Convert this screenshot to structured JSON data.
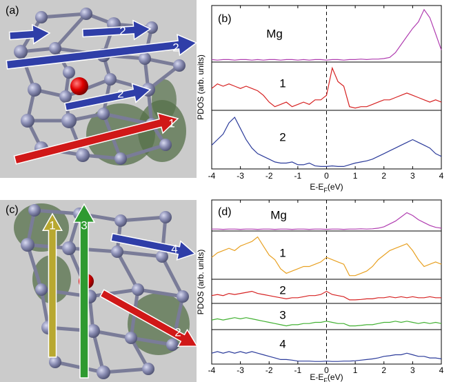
{
  "structures": [
    {
      "label": "(a)",
      "arrow_labels": [
        "2",
        "2",
        "2",
        "1"
      ]
    },
    {
      "label": "(c)",
      "arrow_labels": [
        "1",
        "3",
        "4",
        "2"
      ]
    }
  ],
  "chart_data": [
    {
      "type": "line",
      "label": "(b)",
      "ylabel": "PDOS (arb. units)",
      "xlabel": [
        "E-E",
        "F",
        "(eV)"
      ],
      "vline": 0,
      "xlim": [
        -4,
        4
      ],
      "xticks": [
        -4,
        -3,
        -2,
        -1,
        0,
        1,
        2,
        3,
        4
      ],
      "ylim": [
        0,
        1
      ],
      "x": [
        -4,
        -3.8,
        -3.6,
        -3.4,
        -3.2,
        -3,
        -2.8,
        -2.6,
        -2.4,
        -2.2,
        -2,
        -1.8,
        -1.6,
        -1.4,
        -1.2,
        -1,
        -0.8,
        -0.6,
        -0.4,
        -0.2,
        0,
        0.2,
        0.4,
        0.6,
        0.8,
        1,
        1.2,
        1.4,
        1.6,
        1.8,
        2,
        2.2,
        2.4,
        2.6,
        2.8,
        3,
        3.2,
        3.4,
        3.6,
        3.8,
        4
      ],
      "series": [
        {
          "name": "Mg",
          "color": "#b03cb0",
          "values": [
            0.02,
            0.01,
            0.02,
            0.02,
            0.01,
            0.02,
            0.02,
            0.01,
            0.02,
            0.01,
            0.02,
            0.02,
            0.01,
            0.02,
            0.02,
            0.01,
            0.02,
            0.01,
            0.02,
            0.02,
            0.01,
            0.02,
            0.02,
            0.01,
            0.02,
            0.02,
            0.03,
            0.02,
            0.03,
            0.03,
            0.04,
            0.06,
            0.15,
            0.3,
            0.45,
            0.6,
            0.72,
            0.95,
            0.8,
            0.5,
            0.2
          ]
        },
        {
          "name": "1",
          "color": "#d62020",
          "values": [
            0.45,
            0.55,
            0.5,
            0.55,
            0.5,
            0.45,
            0.5,
            0.45,
            0.4,
            0.3,
            0.15,
            0.05,
            0.1,
            0.15,
            0.05,
            0.1,
            0.15,
            0.1,
            0.2,
            0.2,
            0.3,
            0.9,
            0.6,
            0.5,
            0.05,
            0.02,
            0.05,
            0.05,
            0.1,
            0.15,
            0.2,
            0.2,
            0.25,
            0.3,
            0.35,
            0.3,
            0.25,
            0.2,
            0.15,
            0.2,
            0.15
          ]
        },
        {
          "name": "2",
          "color": "#2a3a9a",
          "values": [
            0.4,
            0.5,
            0.6,
            0.8,
            0.9,
            0.7,
            0.5,
            0.35,
            0.25,
            0.2,
            0.15,
            0.1,
            0.08,
            0.08,
            0.1,
            0.05,
            0.05,
            0.08,
            0.03,
            0.02,
            0.02,
            0.03,
            0.02,
            0.02,
            0.05,
            0.08,
            0.1,
            0.12,
            0.15,
            0.2,
            0.25,
            0.3,
            0.35,
            0.4,
            0.45,
            0.5,
            0.45,
            0.4,
            0.35,
            0.25,
            0.2
          ]
        }
      ]
    },
    {
      "type": "line",
      "label": "(d)",
      "ylabel": "PDOS (arb. units)",
      "xlabel": [
        "E-E",
        "F",
        "(eV)"
      ],
      "vline": 0,
      "xlim": [
        -4,
        4
      ],
      "xticks": [
        -4,
        -3,
        -2,
        -1,
        0,
        1,
        2,
        3,
        4
      ],
      "ylim": [
        0,
        1
      ],
      "x": [
        -4,
        -3.8,
        -3.6,
        -3.4,
        -3.2,
        -3,
        -2.8,
        -2.6,
        -2.4,
        -2.2,
        -2,
        -1.8,
        -1.6,
        -1.4,
        -1.2,
        -1,
        -0.8,
        -0.6,
        -0.4,
        -0.2,
        0,
        0.2,
        0.4,
        0.6,
        0.8,
        1,
        1.2,
        1.4,
        1.6,
        1.8,
        2,
        2.2,
        2.4,
        2.6,
        2.8,
        3,
        3.2,
        3.4,
        3.6,
        3.8,
        4
      ],
      "series": [
        {
          "name": "Mg",
          "color": "#b03cb0",
          "values": [
            0.02,
            0.02,
            0.01,
            0.02,
            0.02,
            0.01,
            0.02,
            0.02,
            0.01,
            0.02,
            0.02,
            0.01,
            0.02,
            0.02,
            0.01,
            0.02,
            0.02,
            0.01,
            0.02,
            0.02,
            0.01,
            0.02,
            0.02,
            0.01,
            0.02,
            0.02,
            0.03,
            0.02,
            0.03,
            0.05,
            0.1,
            0.2,
            0.3,
            0.45,
            0.6,
            0.5,
            0.35,
            0.25,
            0.15,
            0.08,
            0.05
          ]
        },
        {
          "name": "1",
          "color": "#e8a020",
          "values": [
            0.45,
            0.55,
            0.6,
            0.65,
            0.6,
            0.7,
            0.75,
            0.8,
            0.9,
            0.7,
            0.5,
            0.4,
            0.2,
            0.1,
            0.15,
            0.2,
            0.25,
            0.25,
            0.3,
            0.35,
            0.45,
            0.4,
            0.35,
            0.3,
            0.05,
            0.05,
            0.1,
            0.15,
            0.25,
            0.4,
            0.5,
            0.6,
            0.65,
            0.7,
            0.75,
            0.6,
            0.4,
            0.25,
            0.3,
            0.35,
            0.3
          ]
        },
        {
          "name": "2",
          "color": "#d62020",
          "values": [
            0.3,
            0.35,
            0.3,
            0.4,
            0.35,
            0.4,
            0.45,
            0.5,
            0.4,
            0.35,
            0.3,
            0.25,
            0.2,
            0.15,
            0.2,
            0.2,
            0.25,
            0.3,
            0.3,
            0.35,
            0.5,
            0.35,
            0.3,
            0.25,
            0.1,
            0.1,
            0.12,
            0.15,
            0.15,
            0.2,
            0.2,
            0.25,
            0.2,
            0.25,
            0.2,
            0.25,
            0.2,
            0.2,
            0.25,
            0.2,
            0.2
          ]
        },
        {
          "name": "3",
          "color": "#40b030",
          "values": [
            0.35,
            0.4,
            0.35,
            0.4,
            0.45,
            0.4,
            0.45,
            0.4,
            0.35,
            0.3,
            0.25,
            0.2,
            0.15,
            0.1,
            0.15,
            0.15,
            0.2,
            0.2,
            0.25,
            0.25,
            0.3,
            0.25,
            0.2,
            0.2,
            0.1,
            0.1,
            0.12,
            0.15,
            0.15,
            0.2,
            0.25,
            0.25,
            0.3,
            0.25,
            0.3,
            0.25,
            0.2,
            0.25,
            0.2,
            0.25,
            0.2
          ]
        },
        {
          "name": "4",
          "color": "#2a3a9a",
          "values": [
            0.3,
            0.35,
            0.3,
            0.35,
            0.3,
            0.35,
            0.3,
            0.35,
            0.3,
            0.25,
            0.2,
            0.15,
            0.1,
            0.1,
            0.08,
            0.05,
            0.05,
            0.05,
            0.04,
            0.04,
            0.05,
            0.04,
            0.04,
            0.05,
            0.05,
            0.06,
            0.08,
            0.1,
            0.12,
            0.15,
            0.2,
            0.22,
            0.25,
            0.25,
            0.3,
            0.25,
            0.2,
            0.2,
            0.15,
            0.15,
            0.12
          ]
        }
      ]
    }
  ]
}
